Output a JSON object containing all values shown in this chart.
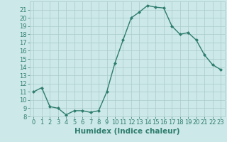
{
  "x": [
    0,
    1,
    2,
    3,
    4,
    5,
    6,
    7,
    8,
    9,
    10,
    11,
    12,
    13,
    14,
    15,
    16,
    17,
    18,
    19,
    20,
    21,
    22,
    23
  ],
  "y": [
    11.0,
    11.5,
    9.2,
    9.0,
    8.2,
    8.7,
    8.7,
    8.5,
    8.7,
    11.0,
    14.5,
    17.3,
    20.0,
    20.7,
    21.5,
    21.3,
    21.2,
    19.0,
    18.0,
    18.2,
    17.3,
    15.5,
    14.3,
    13.7
  ],
  "line_color": "#2e7d6e",
  "marker": "D",
  "marker_size": 2.0,
  "bg_color": "#cce8e8",
  "grid_color": "#aacaca",
  "xlabel": "Humidex (Indice chaleur)",
  "xlim": [
    -0.5,
    23.5
  ],
  "ylim": [
    8,
    22
  ],
  "yticks": [
    8,
    9,
    10,
    11,
    12,
    13,
    14,
    15,
    16,
    17,
    18,
    19,
    20,
    21
  ],
  "xticks": [
    0,
    1,
    2,
    3,
    4,
    5,
    6,
    7,
    8,
    9,
    10,
    11,
    12,
    13,
    14,
    15,
    16,
    17,
    18,
    19,
    20,
    21,
    22,
    23
  ],
  "xtick_labels": [
    "0",
    "1",
    "2",
    "3",
    "4",
    "5",
    "6",
    "7",
    "8",
    "9",
    "10",
    "11",
    "12",
    "13",
    "14",
    "15",
    "16",
    "17",
    "18",
    "19",
    "20",
    "21",
    "22",
    "23"
  ],
  "ytick_labels": [
    "8",
    "9",
    "10",
    "11",
    "12",
    "13",
    "14",
    "15",
    "16",
    "17",
    "18",
    "19",
    "20",
    "21"
  ],
  "tick_color": "#2e7d6e",
  "label_color": "#2e7d6e",
  "line_width": 1.0,
  "xlabel_fontsize": 7.5,
  "tick_fontsize": 6.0
}
